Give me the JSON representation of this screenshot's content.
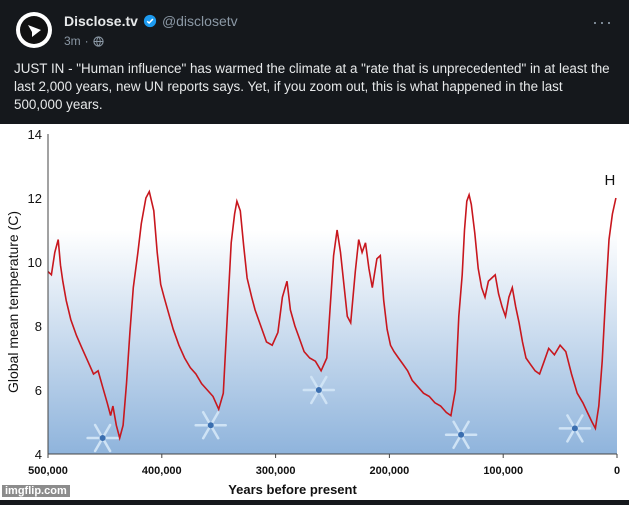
{
  "tweet": {
    "display_name": "Disclose.tv",
    "handle": "@disclosetv",
    "time": "3m",
    "text": "JUST IN - \"Human influence\" has warmed the climate at a \"rate that is unprecedented\" in at least the last 2,000 years, new UN reports says. Yet, if you zoom out, this is what happened in the last 500,000 years."
  },
  "icons": {
    "avatar": "disclosetv-logo",
    "verified": "verified-badge-icon",
    "more": "more-options-icon",
    "audience": "globe-icon"
  },
  "colors": {
    "background": "#15181c",
    "line": "#c8171e",
    "snowflake": "#cfe3f5",
    "gradient_top": "#ffffff",
    "gradient_bottom": "#8fb4dc"
  },
  "watermark": "imgflip.com",
  "chart_data": {
    "type": "line",
    "title": "",
    "xlabel": "Years before present",
    "ylabel": "Global mean temperature  (C)",
    "xlim": [
      500000,
      0
    ],
    "ylim": [
      4,
      14
    ],
    "xticks": [
      "500,000",
      "400,000",
      "300,000",
      "200,000",
      "100,000",
      "0"
    ],
    "yticks": [
      "4",
      "6",
      "8",
      "10",
      "12",
      "14"
    ],
    "annotation": "H",
    "grid": false,
    "series": [
      {
        "x": [
          500000,
          497000,
          494000,
          491000,
          489000,
          487000,
          484000,
          480000,
          475000,
          470000,
          465000,
          460000,
          456000,
          452000,
          448000,
          445000,
          443000,
          440000,
          437000,
          434000,
          431000,
          428000,
          425000,
          421000,
          418000,
          414000,
          411000,
          407000,
          404000,
          401000,
          398000,
          394000,
          390000,
          385000,
          380000,
          375000,
          370000,
          365000,
          360000,
          355000,
          350000,
          346000,
          342000,
          339000,
          336000,
          334000,
          331000,
          328000,
          325000,
          321000,
          318000,
          313000,
          308000,
          303000,
          298000,
          294000,
          290000,
          287000,
          283000,
          280000,
          275000,
          270000,
          265000,
          260000,
          255000,
          252000,
          249000,
          246000,
          243000,
          240000,
          237000,
          234000,
          230000,
          227000,
          224000,
          221000,
          218000,
          215000,
          211000,
          208000,
          205000,
          202000,
          199000,
          196000,
          192000,
          188000,
          184000,
          180000,
          175000,
          170000,
          165000,
          160000,
          155000,
          150000,
          146000,
          142000,
          139000,
          136000,
          134000,
          132000,
          130000,
          128000,
          125000,
          122000,
          119000,
          116000,
          113000,
          110000,
          107000,
          104000,
          101000,
          98000,
          95000,
          92000,
          89000,
          86000,
          83000,
          80000,
          76000,
          72000,
          68000,
          64000,
          60000,
          55000,
          50000,
          45000,
          40000,
          35000,
          30000,
          26000,
          22000,
          19000,
          16000,
          13000,
          10000,
          7000,
          4000,
          1000
        ],
        "y": [
          9.7,
          9.6,
          10.3,
          10.7,
          9.9,
          9.4,
          8.8,
          8.2,
          7.7,
          7.3,
          6.9,
          6.5,
          6.6,
          6.1,
          5.6,
          5.2,
          5.5,
          4.9,
          4.5,
          4.9,
          6.2,
          7.8,
          9.2,
          10.3,
          11.2,
          12.0,
          12.2,
          11.6,
          10.3,
          9.3,
          8.9,
          8.4,
          7.9,
          7.4,
          7.0,
          6.7,
          6.5,
          6.2,
          6.0,
          5.8,
          5.4,
          5.9,
          8.6,
          10.6,
          11.5,
          11.9,
          11.6,
          10.5,
          9.5,
          8.9,
          8.5,
          8.0,
          7.5,
          7.4,
          7.8,
          8.9,
          9.4,
          8.5,
          8.0,
          7.7,
          7.2,
          7.0,
          6.9,
          6.6,
          7.0,
          8.6,
          10.2,
          11.0,
          10.3,
          9.3,
          8.3,
          8.1,
          9.7,
          10.7,
          10.3,
          10.6,
          9.8,
          9.2,
          10.1,
          10.2,
          8.8,
          7.9,
          7.4,
          7.2,
          7.0,
          6.8,
          6.6,
          6.3,
          6.1,
          5.9,
          5.8,
          5.6,
          5.5,
          5.3,
          5.2,
          6.0,
          8.3,
          9.6,
          11.0,
          11.9,
          12.1,
          11.8,
          10.9,
          9.8,
          9.2,
          8.9,
          9.4,
          9.5,
          9.6,
          9.0,
          8.6,
          8.3,
          8.9,
          9.2,
          8.6,
          8.1,
          7.5,
          7.0,
          6.8,
          6.6,
          6.5,
          6.9,
          7.3,
          7.1,
          7.4,
          7.2,
          6.5,
          5.9,
          5.6,
          5.3,
          5.0,
          4.8,
          5.5,
          6.9,
          8.9,
          10.7,
          11.5,
          12.0
        ]
      }
    ]
  }
}
